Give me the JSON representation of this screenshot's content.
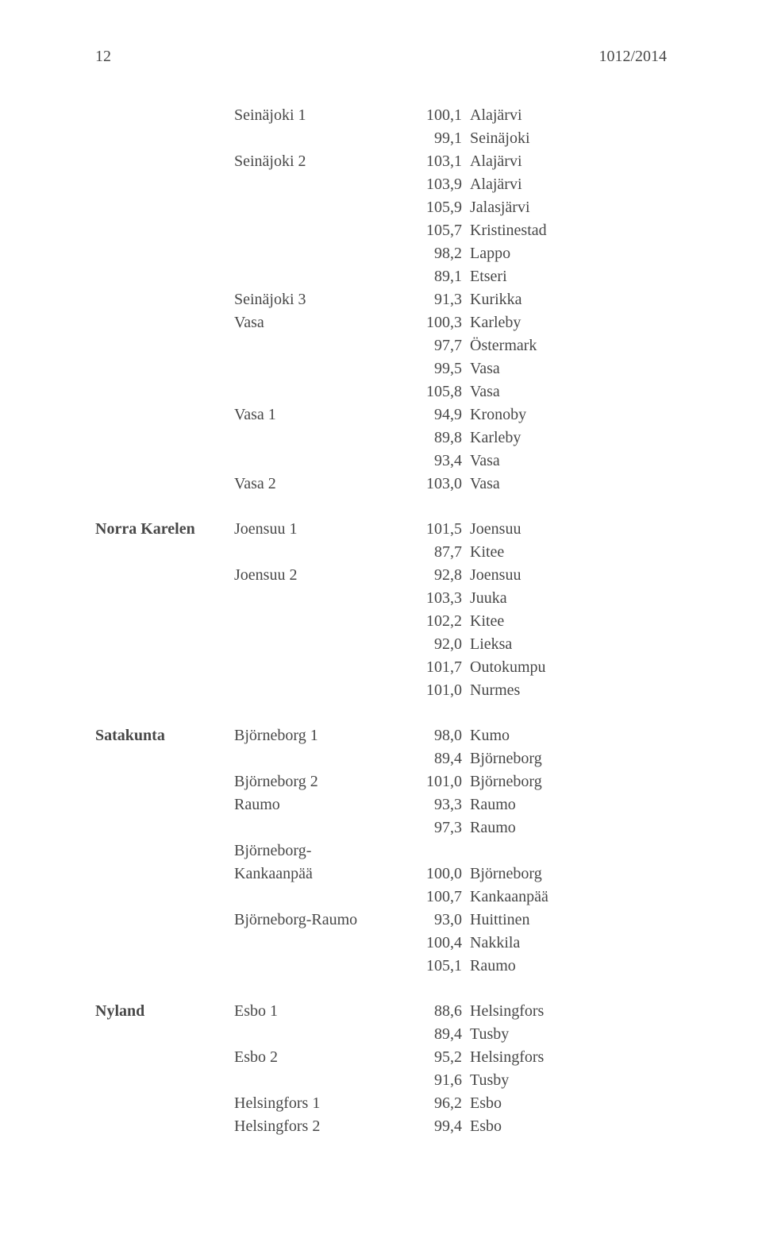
{
  "header": {
    "page_num": "12",
    "doc_ref": "1012/2014"
  },
  "text_color": "#484848",
  "background_color": "#ffffff",
  "font_family": "Times New Roman",
  "base_font_size_pt": 15,
  "sections": [
    {
      "region": "",
      "blocks": [
        {
          "group": "Seinäjoki 1",
          "lines": [
            {
              "value": "100,1",
              "place": "Alajärvi"
            },
            {
              "value": "99,1",
              "place": "Seinäjoki"
            }
          ]
        },
        {
          "group": "Seinäjoki 2",
          "lines": [
            {
              "value": "103,1",
              "place": "Alajärvi"
            },
            {
              "value": "103,9",
              "place": "Alajärvi"
            },
            {
              "value": "105,9",
              "place": "Jalasjärvi"
            },
            {
              "value": "105,7",
              "place": "Kristinestad"
            },
            {
              "value": "98,2",
              "place": "Lappo"
            },
            {
              "value": "89,1",
              "place": "Etseri"
            }
          ]
        },
        {
          "group": "Seinäjoki 3",
          "lines": [
            {
              "value": "91,3",
              "place": "Kurikka"
            }
          ]
        },
        {
          "group": "Vasa",
          "lines": [
            {
              "value": "100,3",
              "place": "Karleby"
            },
            {
              "value": "97,7",
              "place": "Östermark"
            },
            {
              "value": "99,5",
              "place": "Vasa"
            },
            {
              "value": "105,8",
              "place": "Vasa"
            }
          ]
        },
        {
          "group": "Vasa 1",
          "lines": [
            {
              "value": "94,9",
              "place": "Kronoby"
            },
            {
              "value": "89,8",
              "place": "Karleby"
            },
            {
              "value": "93,4",
              "place": "Vasa"
            }
          ]
        },
        {
          "group": "Vasa 2",
          "lines": [
            {
              "value": "103,0",
              "place": "Vasa"
            }
          ]
        }
      ]
    },
    {
      "region": "Norra Karelen",
      "blocks": [
        {
          "group": "Joensuu 1",
          "lines": [
            {
              "value": "101,5",
              "place": "Joensuu"
            },
            {
              "value": "87,7",
              "place": "Kitee"
            }
          ]
        },
        {
          "group": "Joensuu 2",
          "lines": [
            {
              "value": "92,8",
              "place": "Joensuu"
            },
            {
              "value": "103,3",
              "place": "Juuka"
            },
            {
              "value": "102,2",
              "place": "Kitee"
            },
            {
              "value": "92,0",
              "place": "Lieksa"
            },
            {
              "value": "101,7",
              "place": "Outokumpu"
            },
            {
              "value": "101,0",
              "place": "Nurmes"
            }
          ]
        }
      ]
    },
    {
      "region": "Satakunta",
      "blocks": [
        {
          "group": "Björneborg 1",
          "lines": [
            {
              "value": "98,0",
              "place": "Kumo"
            },
            {
              "value": "89,4",
              "place": "Björneborg"
            }
          ]
        },
        {
          "group": "Björneborg 2",
          "lines": [
            {
              "value": "101,0",
              "place": "Björneborg"
            }
          ]
        },
        {
          "group": "Raumo",
          "lines": [
            {
              "value": "93,3",
              "place": "Raumo"
            },
            {
              "value": "97,3",
              "place": "Raumo"
            }
          ]
        },
        {
          "group": "Björneborg-\nKankaanpää",
          "lines": [
            {
              "value": "100,0",
              "place": "Björneborg"
            },
            {
              "value": "100,7",
              "place": "Kankaanpää"
            }
          ]
        },
        {
          "group": "Björneborg-Raumo",
          "lines": [
            {
              "value": "93,0",
              "place": "Huittinen"
            },
            {
              "value": "100,4",
              "place": "Nakkila"
            },
            {
              "value": "105,1",
              "place": "Raumo"
            }
          ]
        }
      ]
    },
    {
      "region": "Nyland",
      "blocks": [
        {
          "group": "Esbo 1",
          "lines": [
            {
              "value": "88,6",
              "place": "Helsingfors"
            },
            {
              "value": "89,4",
              "place": "Tusby"
            }
          ]
        },
        {
          "group": "Esbo 2",
          "lines": [
            {
              "value": "95,2",
              "place": "Helsingfors"
            },
            {
              "value": "91,6",
              "place": "Tusby"
            }
          ]
        },
        {
          "group": "Helsingfors 1",
          "lines": [
            {
              "value": "96,2",
              "place": "Esbo"
            }
          ]
        },
        {
          "group": "Helsingfors 2",
          "lines": [
            {
              "value": "99,4",
              "place": "Esbo"
            }
          ]
        }
      ]
    }
  ]
}
